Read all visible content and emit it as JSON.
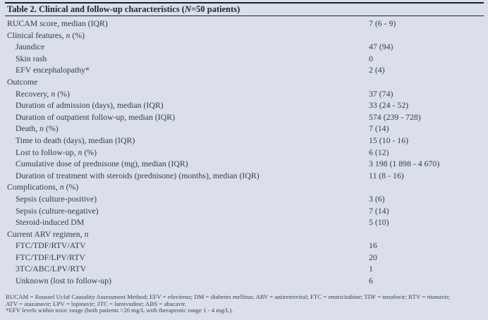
{
  "table": {
    "title": {
      "pre": "Table 2. Clinical and follow-up characteristics (",
      "italic": "N",
      "post": "=50 patients)"
    },
    "columns": {
      "label_column": "characteristic",
      "value_column": "value",
      "value_column_x": "523px"
    },
    "rows": [
      {
        "pre": "RUCAM score, median (IQR)",
        "it": "",
        "post": "",
        "value": "7 (6 - 9)",
        "indent": 0
      },
      {
        "pre": "Clinical features, ",
        "it": "n",
        "post": " (%)",
        "value": "",
        "indent": 0
      },
      {
        "pre": "Jaundice",
        "it": "",
        "post": "",
        "value": "47 (94)",
        "indent": 1
      },
      {
        "pre": "Skin rash",
        "it": "",
        "post": "",
        "value": "0",
        "indent": 1
      },
      {
        "pre": "EFV encephalopathy*",
        "it": "",
        "post": "",
        "value": "2 (4)",
        "indent": 1
      },
      {
        "pre": "Outcome",
        "it": "",
        "post": "",
        "value": "",
        "indent": 0
      },
      {
        "pre": "Recovery, ",
        "it": "n",
        "post": " (%)",
        "value": "37 (74)",
        "indent": 1
      },
      {
        "pre": "Duration of admission (days), median (IQR)",
        "it": "",
        "post": "",
        "value": "33 (24 - 52)",
        "indent": 1
      },
      {
        "pre": "Duration of outpatient follow-up, median (IQR)",
        "it": "",
        "post": "",
        "value": "574 (239 - 728)",
        "indent": 1
      },
      {
        "pre": "Death, ",
        "it": "n",
        "post": " (%)",
        "value": "7 (14)",
        "indent": 1
      },
      {
        "pre": "Time to death (days), median (IQR)",
        "it": "",
        "post": "",
        "value": "15 (10 - 16)",
        "indent": 1
      },
      {
        "pre": "Lost to follow-up, ",
        "it": "n",
        "post": " (%)",
        "value": "6 (12)",
        "indent": 1
      },
      {
        "pre": "Cumulative dose of prednisone (mg), median (IQR)",
        "it": "",
        "post": "",
        "value": "3 198 (1 898 - 4 670)",
        "indent": 1
      },
      {
        "pre": "Duration of treatment with steroids (prednisone) (months), median (IQR)",
        "it": "",
        "post": "",
        "value": "11 (8 - 16)",
        "indent": 1
      },
      {
        "pre": "Complications, ",
        "it": "n",
        "post": " (%)",
        "value": "",
        "indent": 0
      },
      {
        "pre": "Sepsis (culture-positive)",
        "it": "",
        "post": "",
        "value": "3 (6)",
        "indent": 1
      },
      {
        "pre": "Sepsis (culture-negative)",
        "it": "",
        "post": "",
        "value": "7 (14)",
        "indent": 1
      },
      {
        "pre": "Steroid-induced DM",
        "it": "",
        "post": "",
        "value": "5 (10)",
        "indent": 1
      },
      {
        "pre": "Current ARV regimen, ",
        "it": "n",
        "post": "",
        "value": "",
        "indent": 0
      },
      {
        "pre": "FTC/TDF/RTV/ATV",
        "it": "",
        "post": "",
        "value": "16",
        "indent": 1
      },
      {
        "pre": "FTC/TDF/LPV/RTV",
        "it": "",
        "post": "",
        "value": "20",
        "indent": 1
      },
      {
        "pre": "3TC/ABC/LPV/RTV",
        "it": "",
        "post": "",
        "value": "1",
        "indent": 1
      },
      {
        "pre": "Unknown (lost to follow-up)",
        "it": "",
        "post": "",
        "value": "6",
        "indent": 1
      }
    ],
    "footnotes": {
      "abbrev_line1": "RUCAM = Roussel Uclaf Causality Assessment Method; EFV = efavirenz; DM = diabetes mellitus; ARV = antiretroviral; FTC = emtricitabine; TDF = tenofovir; RTV = ritonavir;",
      "abbrev_line2": "ATV = atazanavir; LPV = lopinavir; 3TC = lamivudine; ABS = abacavir.",
      "star_note": "*EFV levels within toxic range (both patients >20 mg/L with therapeutic range 1 - 4 mg/L)."
    },
    "colors": {
      "background": "#dadfe9",
      "text": "#313d4f",
      "title_text": "#1d2735",
      "rule": "#17212e"
    }
  }
}
